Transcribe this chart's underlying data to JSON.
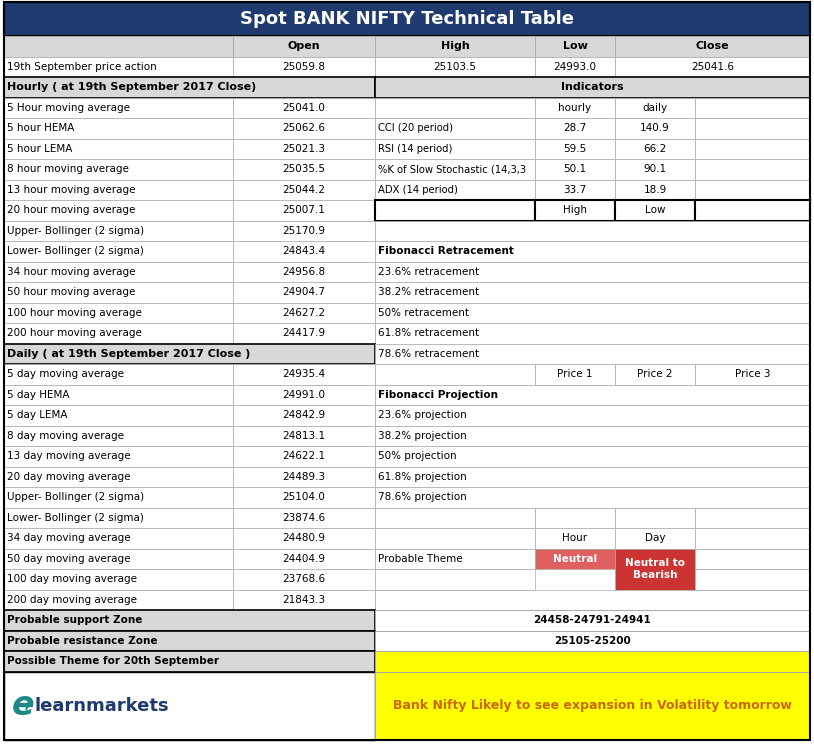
{
  "title": "Spot BANK NIFTY Technical Table",
  "title_bg": "#1e3a6e",
  "title_color": "#ffffff",
  "price_action_row": [
    "19th September price action",
    "25059.8",
    "25103.5",
    "24993.0",
    "25041.6"
  ],
  "hourly_header": "Hourly ( at 19th September 2017 Close)",
  "indicators_header": "Indicators",
  "hourly_rows": [
    [
      "5 Hour moving average",
      "25041.0"
    ],
    [
      "5 hour HEMA",
      "25062.6"
    ],
    [
      "5 hour LEMA",
      "25021.3"
    ],
    [
      "8 hour moving average",
      "25035.5"
    ],
    [
      "13 hour moving average",
      "25044.2"
    ],
    [
      "20 hour moving average",
      "25007.1"
    ],
    [
      "Upper- Bollinger (2 sigma)",
      "25170.9"
    ],
    [
      "Lower- Bollinger (2 sigma)",
      "24843.4"
    ],
    [
      "34 hour moving average",
      "24956.8"
    ],
    [
      "50 hour moving average",
      "24904.7"
    ],
    [
      "100 hour moving average",
      "24627.2"
    ],
    [
      "200 hour moving average",
      "24417.9"
    ]
  ],
  "indicators_rows": [
    [
      "",
      "hourly",
      "daily",
      ""
    ],
    [
      "CCI (20 period)",
      "28.7",
      "140.9",
      ""
    ],
    [
      "RSI (14 period)",
      "59.5",
      "66.2",
      ""
    ],
    [
      "%K of Slow Stochastic (14,3,3",
      "50.1",
      "90.1",
      ""
    ],
    [
      "ADX (14 period)",
      "33.7",
      "18.9",
      ""
    ],
    [
      "",
      "High",
      "Low",
      ""
    ],
    [
      "",
      "",
      "",
      ""
    ],
    [
      "Fibonacci Retracement",
      "",
      "",
      ""
    ],
    [
      "23.6% retracement",
      "",
      "",
      ""
    ],
    [
      "38.2% retracement",
      "",
      "",
      ""
    ],
    [
      "50% retracement",
      "",
      "",
      ""
    ],
    [
      "61.8% retracement",
      "",
      "",
      ""
    ]
  ],
  "daily_header": "Daily ( at 19th September 2017 Close )",
  "daily_rows": [
    [
      "5 day moving average",
      "24935.4"
    ],
    [
      "5 day HEMA",
      "24991.0"
    ],
    [
      "5 day LEMA",
      "24842.9"
    ],
    [
      "8 day moving average",
      "24813.1"
    ],
    [
      "13 day moving average",
      "24622.1"
    ],
    [
      "20 day moving average",
      "24489.3"
    ],
    [
      "Upper- Bollinger (2 sigma)",
      "25104.0"
    ],
    [
      "Lower- Bollinger (2 sigma)",
      "23874.6"
    ],
    [
      "34 day moving average",
      "24480.9"
    ],
    [
      "50 day moving average",
      "24404.9"
    ],
    [
      "100 day moving average",
      "23768.6"
    ],
    [
      "200 day moving average",
      "21843.3"
    ]
  ],
  "projection_rows": [
    [
      "",
      "Price 1",
      "Price 2",
      "Price 3"
    ],
    [
      "Fibonacci Projection",
      "",
      "",
      ""
    ],
    [
      "23.6% projection",
      "",
      "",
      ""
    ],
    [
      "38.2% projection",
      "",
      "",
      ""
    ],
    [
      "50% projection",
      "",
      "",
      ""
    ],
    [
      "61.8% projection",
      "",
      "",
      ""
    ],
    [
      "78.6% projection",
      "",
      "",
      ""
    ],
    [
      "",
      "",
      "",
      ""
    ],
    [
      "",
      "Hour",
      "Day",
      ""
    ],
    [
      "Probable Theme",
      "Neutral",
      "Neutral to\nBearish",
      ""
    ],
    [
      "",
      "",
      "",
      ""
    ],
    [
      "",
      "",
      "",
      ""
    ]
  ],
  "probable_support": "24458-24791-24941",
  "probable_resistance": "25105-25200",
  "possible_theme_text": "Bank Nifty Likely to see expansion in Volatility tomorrow",
  "neutral_color": "#e06060",
  "neutral_to_bearish_color": "#cc3333",
  "yellow_bg": "#ffff00",
  "orange_text": "#cc6600"
}
